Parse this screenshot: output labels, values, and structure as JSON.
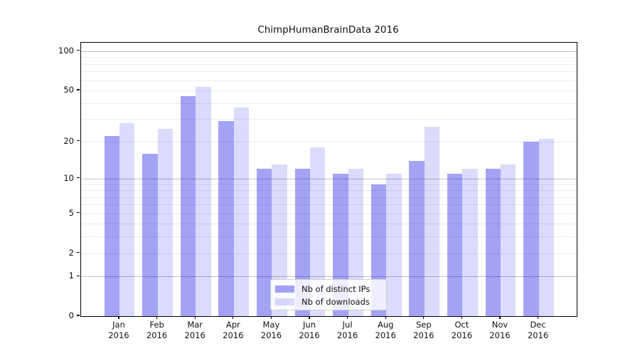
{
  "chart_data": {
    "type": "bar",
    "title": "ChimpHumanBrainData 2016",
    "categories": [
      "Jan",
      "Feb",
      "Mar",
      "Apr",
      "May",
      "Jun",
      "Jul",
      "Aug",
      "Sep",
      "Oct",
      "Nov",
      "Dec"
    ],
    "category_year": "2016",
    "series": [
      {
        "name": "Nb of distinct IPs",
        "color": "#0000e6",
        "alpha": 0.36,
        "rendered_color": "#a3a3f6",
        "values": [
          22,
          16,
          45,
          29,
          12,
          12,
          11,
          9,
          14,
          11,
          12,
          20
        ]
      },
      {
        "name": "Nb of downloads",
        "color": "#0000e6",
        "alpha": 0.14,
        "rendered_color": "#dfdffb",
        "values": [
          28,
          25,
          53,
          37,
          13,
          18,
          12,
          11,
          26,
          12,
          13,
          21
        ]
      }
    ],
    "y_axis": {
      "scale": "log1p",
      "tick_labels": [
        100,
        50,
        20,
        10,
        5,
        2,
        1,
        0
      ],
      "major_gridlines": [
        100,
        10,
        1
      ],
      "minor_gridlines": [
        90,
        80,
        70,
        60,
        50,
        40,
        30,
        20,
        9,
        8,
        7,
        6,
        5,
        4,
        3,
        2
      ],
      "ylim": [
        0,
        116
      ]
    },
    "x_axis": {
      "label_lines": 2
    },
    "legend": {
      "position": "lower-center"
    },
    "grid": true,
    "colors": {
      "major_grid": "#c2c2c2",
      "minor_grid": "#ebebeb",
      "axis": "#000000",
      "background": "#ffffff"
    }
  }
}
